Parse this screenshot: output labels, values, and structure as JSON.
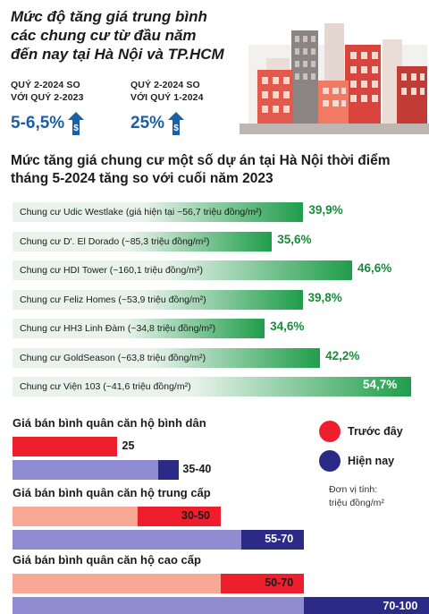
{
  "header": {
    "title_lines": [
      "Mức độ tăng giá trung bình",
      "các chung cư từ đầu năm",
      "đến nay tại Hà Nội và TP.HCM"
    ],
    "stats": [
      {
        "label_line1": "QUÝ 2-2024 SO",
        "label_line2": "VỚI QUÝ 2-2023",
        "value": "5-6,5%"
      },
      {
        "label_line1": "QUÝ 2-2024 SO",
        "label_line2": "VỚI QUÝ 1-2024",
        "value": "25%"
      }
    ]
  },
  "section2": {
    "title_line1": "Mức tăng giá chung cư một số dự án tại Hà Nội thời điểm",
    "title_line2": "tháng 5-2024 tăng so với cuối năm 2023"
  },
  "legend": {
    "before": "Trước đây",
    "now": "Hiện nay",
    "unit_line1": "Đơn vị tính:",
    "unit_line2": "triệu đồng/m²"
  },
  "colors": {
    "green_dark": "#1f9d4a",
    "green_light": "#e9f3ec",
    "red": "#ee1f2c",
    "salmon": "#f8a894",
    "navy": "#2b2a86",
    "lavender": "#8f8cd2",
    "stat_blue": "#1d5fa6"
  },
  "chart_data": [
    {
      "type": "bar",
      "orientation": "horizontal",
      "title": "Mức tăng giá chung cư một số dự án tại Hà Nội thời điểm tháng 5-2024 tăng so với cuối năm 2023",
      "categories": [
        "Chung cư Udic Westlake (giá hiện tại ~56,7 triệu đồng/m²)",
        "Chung cư D'. El Dorado (~85,3 triệu đồng/m²)",
        "Chung cư HDI Tower (~160,1 triệu đồng/m²)",
        "Chung cư Feliz Homes (~53,9 triệu đồng/m²)",
        "Chung cư HH3 Linh Đàm (~34,8 triệu đồng/m²)",
        "Chung cư GoldSeason (~63,8 triệu đồng/m²)",
        "Chung cư Viện 103 (~41,6 triệu đồng/m²)"
      ],
      "values": [
        39.9,
        35.6,
        46.6,
        39.8,
        34.6,
        42.2,
        54.7
      ],
      "labels": [
        "39,9%",
        "35,6%",
        "46,6%",
        "39,8%",
        "34,6%",
        "42,2%",
        "54,7%"
      ]
    },
    {
      "type": "bar",
      "orientation": "horizontal",
      "groups": [
        {
          "title": "Giá bán bình quân căn hộ bình dân",
          "before": {
            "low": 25,
            "high": 25,
            "label": "25"
          },
          "now": {
            "low": 35,
            "high": 40,
            "label": "35-40"
          }
        },
        {
          "title": "Giá bán bình quân căn hộ trung cấp",
          "before": {
            "low": 30,
            "high": 50,
            "label": "30-50"
          },
          "now": {
            "low": 55,
            "high": 70,
            "label": "55-70"
          }
        },
        {
          "title": "Giá bán bình quân căn hộ cao cấp",
          "before": {
            "low": 50,
            "high": 70,
            "label": "50-70"
          },
          "now": {
            "low": 70,
            "high": 100,
            "label": "70-100"
          }
        }
      ],
      "series": [
        {
          "name": "Trước đây"
        },
        {
          "name": "Hiện nay"
        }
      ]
    }
  ]
}
